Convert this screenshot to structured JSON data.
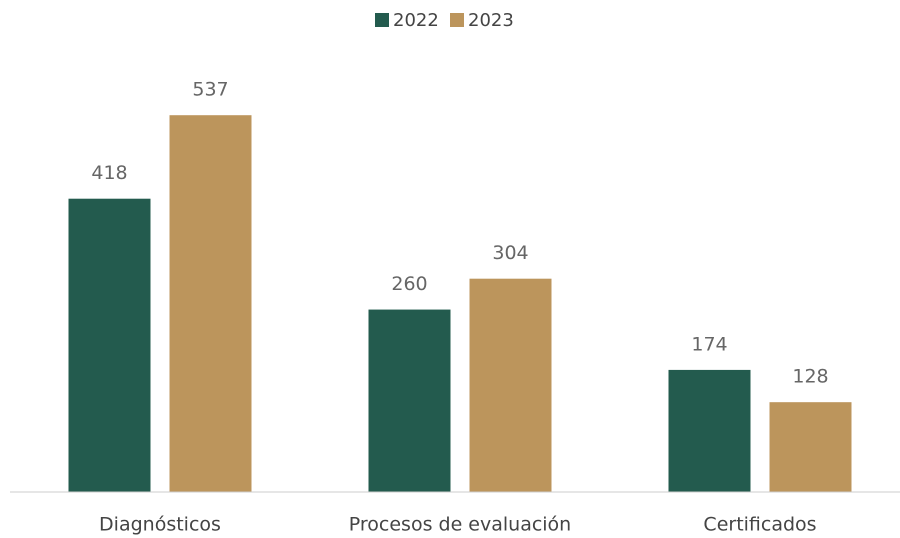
{
  "chart_data": {
    "type": "bar",
    "categories": [
      "Diagnósticos",
      "Procesos de evaluación",
      "Certificados"
    ],
    "series": [
      {
        "name": "2022",
        "color": "#235b4e",
        "values": [
          418,
          260,
          174
        ]
      },
      {
        "name": "2023",
        "color": "#bc955c",
        "values": [
          537,
          304,
          128
        ]
      }
    ],
    "ylim": [
      0,
      600
    ],
    "legend": "top"
  }
}
